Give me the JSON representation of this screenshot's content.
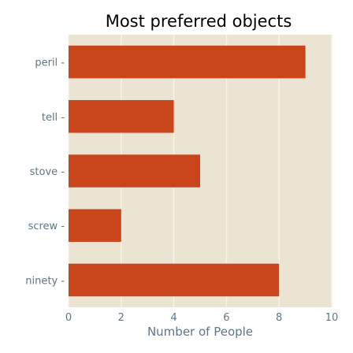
{
  "chart_data": {
    "type": "bar",
    "orientation": "horizontal",
    "title": "Most preferred objects",
    "xlabel": "Number of People",
    "ylabel": "",
    "categories": [
      "ninety",
      "screw",
      "stove",
      "tell",
      "peril"
    ],
    "values": [
      8,
      2,
      5,
      4,
      9
    ],
    "xlim": [
      0,
      10
    ],
    "xticks": [
      0,
      2,
      4,
      6,
      8,
      10
    ],
    "grid": true,
    "legend": "none",
    "colors": {
      "bar": "#c9461c",
      "plot_background": "#ece4d3",
      "grid": "#f7f2e8",
      "tick_text": "#5f7585"
    }
  }
}
